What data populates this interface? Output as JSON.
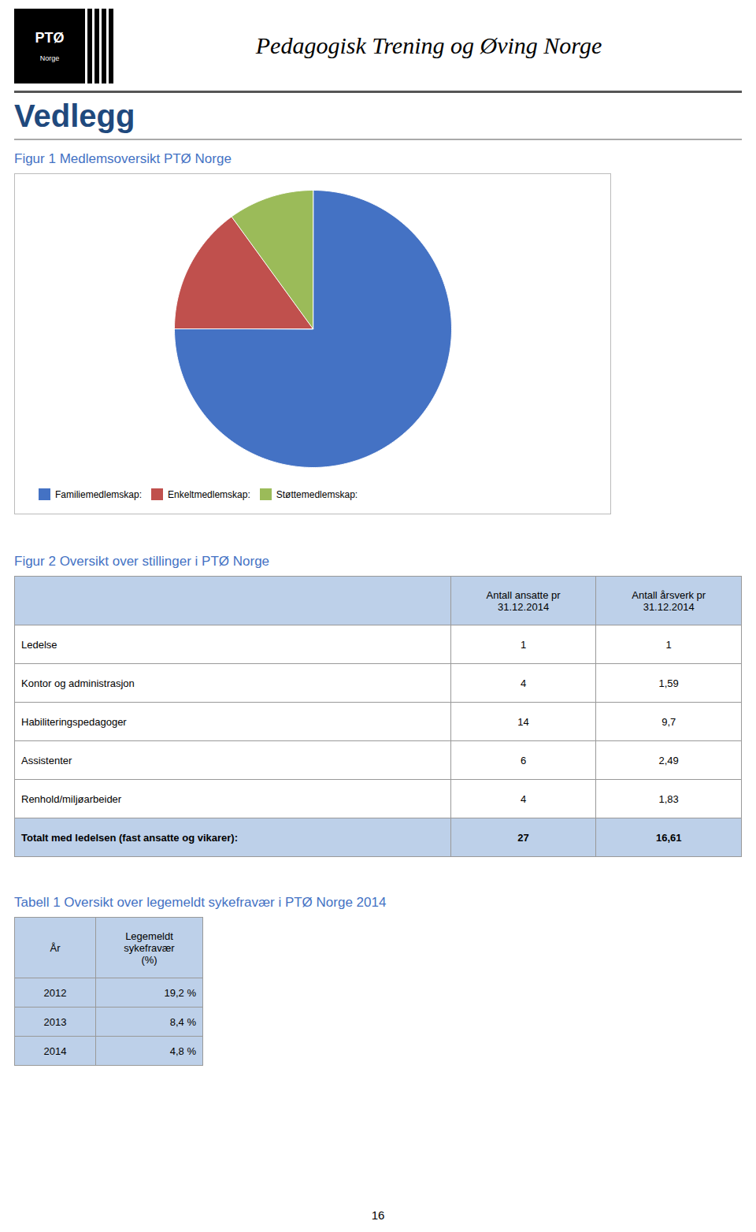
{
  "page_title": "Pedagogisk Trening og Øving Norge",
  "logo_text": [
    "PTØ",
    "Norge"
  ],
  "section_title": "Vedlegg",
  "page_number": "16",
  "chart_data": [
    {
      "type": "pie",
      "title": "Figur 1 Medlemsoversikt PTØ Norge",
      "categories": [
        "Familiemedlemskap:",
        "Enkeltmedlemskap:",
        "Støttemedlemskap:"
      ],
      "values": [
        75,
        15,
        10
      ],
      "colors": [
        "#4472C4",
        "#C0504D",
        "#9BBB59"
      ],
      "legend": "bottom"
    },
    {
      "type": "table",
      "title": "Figur 2 Oversikt over stillinger i PTØ Norge",
      "columns": [
        null,
        "Antall ansatte pr\n31.12.2014",
        "Antall årsverk pr\n31.12.2014"
      ],
      "rows": [
        [
          "Ledelse",
          "1",
          "1"
        ],
        [
          "Kontor og administrasjon",
          "4",
          "1,59"
        ],
        [
          "Habiliteringspedagoger",
          "14",
          "9,7"
        ],
        [
          "Assistenter",
          "6",
          "2,49"
        ],
        [
          "Renhold/miljøarbeider",
          "4",
          "1,83"
        ],
        [
          "Totalt med ledelsen (fast ansatte og vikarer):",
          "27",
          "16,61"
        ]
      ]
    },
    {
      "type": "table",
      "title": "Tabell 1 Oversikt over legemeldt sykefravær i PTØ Norge 2014",
      "columns": [
        "År",
        "Legemeldt\nsykefravær\n(%)"
      ],
      "rows": [
        [
          "2012",
          "19,2 %"
        ],
        [
          "2013",
          "8,4 %"
        ],
        [
          "2014",
          "4,8 %"
        ]
      ]
    }
  ]
}
